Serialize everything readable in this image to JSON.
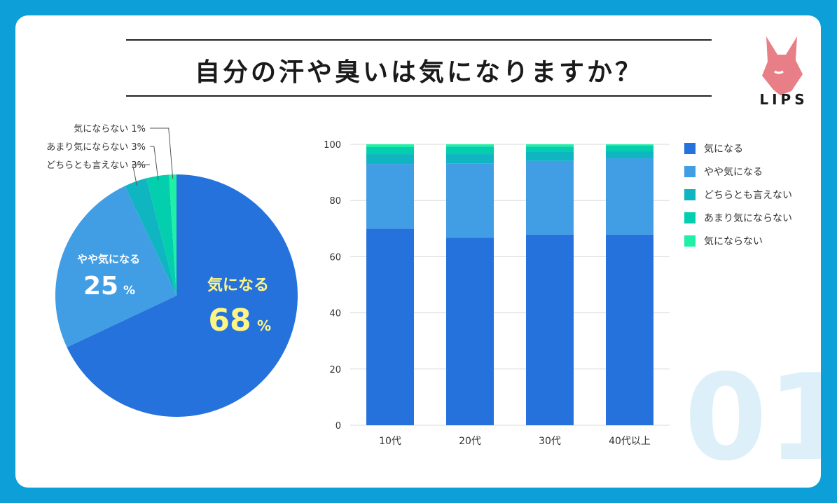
{
  "title": "自分の汗や臭いは気になりますか？",
  "logo": {
    "text": "LIPS"
  },
  "badge_number": "01",
  "colors": {
    "series": [
      "#2572dc",
      "#419ee4",
      "#0fb5c1",
      "#03cfae",
      "#1ff0a6"
    ],
    "highlight": "#fff585",
    "white": "#ffffff",
    "grid": "#d8d8d8",
    "text": "#333333",
    "logo": "#e87f86"
  },
  "chart_data": [
    {
      "type": "pie",
      "slices": [
        {
          "label": "気になる",
          "value": 68,
          "display": "68"
        },
        {
          "label": "やや気になる",
          "value": 25,
          "display": "25"
        },
        {
          "label": "どちらとも言えない",
          "value": 3,
          "display": "3%"
        },
        {
          "label": "あまり気にならない",
          "value": 3,
          "display": "3%"
        },
        {
          "label": "気にならない",
          "value": 1,
          "display": "1%"
        }
      ],
      "percent_sign": "%"
    },
    {
      "type": "bar",
      "stacked": true,
      "categories": [
        "10代",
        "20代",
        "30代",
        "40代以上"
      ],
      "series": [
        {
          "name": "気になる",
          "values": [
            70,
            66.7,
            67.9,
            67.9
          ]
        },
        {
          "name": "やや気になる",
          "values": [
            23,
            26.5,
            26.2,
            27.1
          ]
        },
        {
          "name": "どちらとも言えない",
          "values": [
            3.5,
            3.3,
            3.3,
            2.5
          ]
        },
        {
          "name": "あまり気にならない",
          "values": [
            2.5,
            2.7,
            1.8,
            2.0
          ]
        },
        {
          "name": "気にならない",
          "values": [
            1.0,
            0.8,
            0.8,
            0.5
          ]
        }
      ],
      "yticks": [
        "0",
        "20",
        "40",
        "60",
        "80",
        "100"
      ],
      "ylim": [
        0,
        100
      ],
      "legend_position": "right"
    }
  ]
}
